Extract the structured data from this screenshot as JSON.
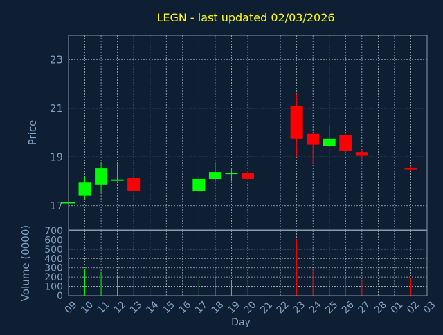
{
  "chart_data": [
    {
      "type": "candlestick",
      "title": "LEGN - last updated 02/03/2026",
      "ylabel": "Price",
      "ylim": [
        16,
        24
      ],
      "yticks": [
        17,
        19,
        21,
        23
      ],
      "grid": true,
      "categories": [
        "09",
        "10",
        "11",
        "12",
        "13",
        "14",
        "15",
        "16",
        "17",
        "18",
        "19",
        "20",
        "21",
        "22",
        "23",
        "24",
        "25",
        "26",
        "27",
        "28",
        "01",
        "02",
        "03"
      ],
      "candles": [
        {
          "day": "09",
          "open": 17.15,
          "close": 17.15,
          "high": 17.2,
          "low": 17.1
        },
        {
          "day": "10",
          "open": 17.4,
          "close": 17.95,
          "high": 18.2,
          "low": 17.25
        },
        {
          "day": "11",
          "open": 17.85,
          "close": 18.55,
          "high": 18.75,
          "low": 17.5
        },
        {
          "day": "12",
          "open": 18.05,
          "close": 18.08,
          "high": 18.8,
          "low": 18.0
        },
        {
          "day": "13",
          "open": 18.15,
          "close": 17.6,
          "high": 18.5,
          "low": 17.5
        },
        {
          "day": "17",
          "open": 17.6,
          "close": 18.1,
          "high": 18.2,
          "low": 17.55
        },
        {
          "day": "18",
          "open": 18.1,
          "close": 18.38,
          "high": 18.75,
          "low": 18.0
        },
        {
          "day": "19",
          "open": 18.3,
          "close": 18.35,
          "high": 18.55,
          "low": 18.0
        },
        {
          "day": "20",
          "open": 18.35,
          "close": 18.1,
          "high": 18.4,
          "low": 18.05
        },
        {
          "day": "23",
          "open": 21.1,
          "close": 19.75,
          "high": 21.6,
          "low": 19.0
        },
        {
          "day": "24",
          "open": 19.95,
          "close": 19.5,
          "high": 19.95,
          "low": 18.7
        },
        {
          "day": "25",
          "open": 19.45,
          "close": 19.75,
          "high": 20.3,
          "low": 19.4
        },
        {
          "day": "26",
          "open": 19.9,
          "close": 19.25,
          "high": 19.95,
          "low": 19.1
        },
        {
          "day": "27",
          "open": 19.2,
          "close": 19.05,
          "high": 19.3,
          "low": 18.85
        },
        {
          "day": "02",
          "open": 18.55,
          "close": 18.48,
          "high": 18.6,
          "low": 18.45
        }
      ]
    },
    {
      "type": "bar",
      "ylabel": "Volume (0000)",
      "xlabel": "Day",
      "ylim": [
        0,
        700
      ],
      "yticks": [
        0,
        100,
        200,
        300,
        400,
        500,
        600,
        700
      ],
      "grid": true,
      "categories": [
        "09",
        "10",
        "11",
        "12",
        "13",
        "14",
        "15",
        "16",
        "17",
        "18",
        "19",
        "20",
        "21",
        "22",
        "23",
        "24",
        "25",
        "26",
        "27",
        "28",
        "01",
        "02",
        "03"
      ],
      "volumes": [
        {
          "day": "10",
          "value": 290,
          "direction": "up"
        },
        {
          "day": "11",
          "value": 255,
          "direction": "up"
        },
        {
          "day": "12",
          "value": 215,
          "direction": "up"
        },
        {
          "day": "13",
          "value": 160,
          "direction": "down"
        },
        {
          "day": "17",
          "value": 170,
          "direction": "up"
        },
        {
          "day": "18",
          "value": 200,
          "direction": "up"
        },
        {
          "day": "19",
          "value": 165,
          "direction": "up"
        },
        {
          "day": "20",
          "value": 160,
          "direction": "down"
        },
        {
          "day": "23",
          "value": 610,
          "direction": "down"
        },
        {
          "day": "24",
          "value": 280,
          "direction": "down"
        },
        {
          "day": "25",
          "value": 160,
          "direction": "up"
        },
        {
          "day": "26",
          "value": 180,
          "direction": "down"
        },
        {
          "day": "27",
          "value": 175,
          "direction": "down"
        },
        {
          "day": "02",
          "value": 185,
          "direction": "down"
        }
      ]
    }
  ],
  "colors": {
    "background": "#0f1f33",
    "plot_border": "#8899aa",
    "grid": "#b0b8c0",
    "title": "#ffff00",
    "axis_text": "#7fa3c8",
    "up": "#00ff00",
    "down": "#ff0000"
  }
}
